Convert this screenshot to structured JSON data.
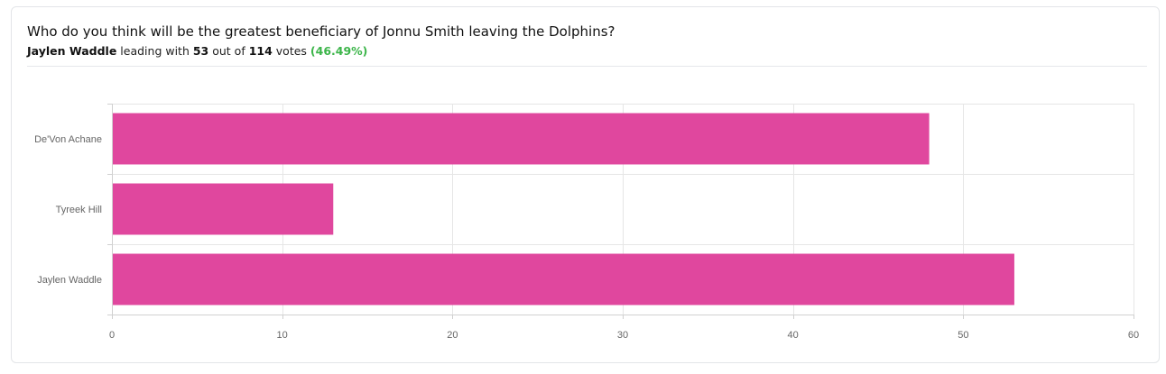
{
  "poll": {
    "question": "Who do you think will be the greatest beneficiary of Jonnu Smith leaving the Dolphins?",
    "leader_name": "Jaylen Waddle",
    "leading_text": " leading with ",
    "leader_votes": "53",
    "out_of_text": " out of ",
    "total_votes": "114",
    "votes_text": " votes ",
    "leader_percent": "(46.49%)"
  },
  "chart_data": {
    "type": "bar",
    "orientation": "horizontal",
    "categories": [
      "De'Von Achane",
      "Tyreek Hill",
      "Jaylen Waddle"
    ],
    "values": [
      48,
      13,
      53
    ],
    "xlim": [
      0,
      60
    ],
    "xticks": [
      0,
      10,
      20,
      30,
      40,
      50,
      60
    ],
    "grid": true,
    "bar_color": "#e0479e"
  }
}
